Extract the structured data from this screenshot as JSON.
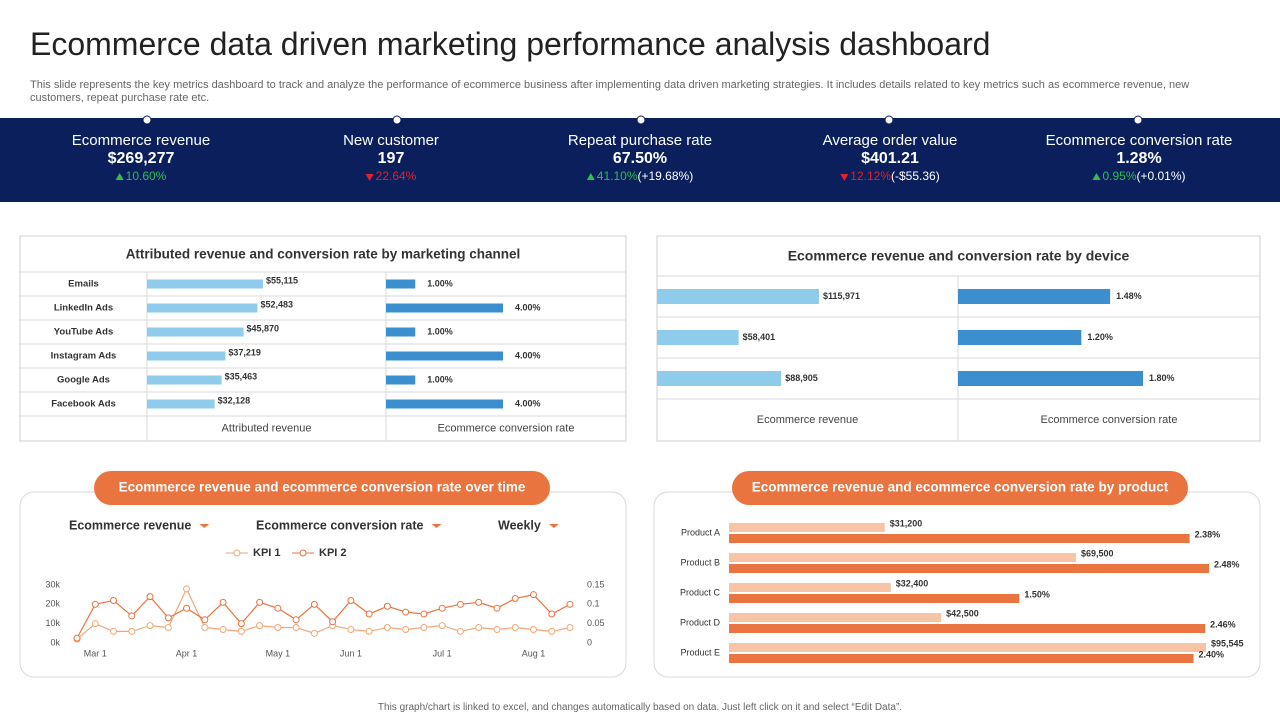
{
  "title": "Ecommerce data driven marketing performance analysis dashboard",
  "description": "This slide represents the key metrics dashboard to track and analyze the performance of ecommerce business after implementing data driven marketing strategies. It includes details related to key metrics such as ecommerce revenue, new customers, repeat purchase rate etc.",
  "kpis": [
    {
      "name": "Ecommerce revenue",
      "value": "$269,277",
      "change": "10.60%",
      "direction": "up"
    },
    {
      "name": "New customer",
      "value": "197",
      "change": "22.64%",
      "direction": "down"
    },
    {
      "name": "Repeat purchase rate",
      "value": "67.50%",
      "change": "41.10%",
      "extra": "(+19.68%)",
      "direction": "up"
    },
    {
      "name": "Average order value",
      "value": "$401.21",
      "change": "12.12%",
      "extra": "(-$55.36)",
      "direction": "down"
    },
    {
      "name": "Ecommerce conversion rate",
      "value": "1.28%",
      "change": "0.95%",
      "extra": "(+0.01%)",
      "direction": "up"
    }
  ],
  "chart_data": [
    {
      "type": "bar",
      "title": "Attributed revenue and conversion rate by marketing channel",
      "categories": [
        "Emails",
        "LinkedIn Ads",
        "YouTube Ads",
        "Instagram Ads",
        "Google Ads",
        "Facebook Ads"
      ],
      "series": [
        {
          "name": "Attributed revenue",
          "color": "#8fcbea",
          "values": [
            55115,
            52483,
            45870,
            37219,
            35463,
            32128
          ],
          "value_labels": [
            "$55,115",
            "$52,483",
            "$45,870",
            "$37,219",
            "$35,463",
            "$32,128"
          ]
        },
        {
          "name": "Ecommerce conversion rate",
          "color": "#3b8fcf",
          "values": [
            1.0,
            4.0,
            1.0,
            4.0,
            1.0,
            4.0
          ],
          "value_labels": [
            "1.00%",
            "4.00%",
            "1.00%",
            "4.00%",
            "1.00%",
            "4.00%"
          ]
        }
      ]
    },
    {
      "type": "bar",
      "title": "Ecommerce revenue and conversion rate by device",
      "categories": [
        null,
        null,
        null
      ],
      "series": [
        {
          "name": "Ecommerce revenue",
          "color": "#8fcbea",
          "values": [
            115971,
            58401,
            88905
          ],
          "value_labels": [
            "$115,971",
            "$58,401",
            "$88,905"
          ]
        },
        {
          "name": "Ecommerce conversion rate",
          "color": "#3b8fcf",
          "values": [
            1.48,
            1.2,
            1.8
          ],
          "value_labels": [
            "1.48%",
            "1.20%",
            "1.80%"
          ]
        }
      ]
    },
    {
      "type": "line",
      "title": "Ecommerce revenue and ecommerce conversion rate over time",
      "controls": [
        "Ecommerce revenue",
        "Ecommerce conversion rate",
        "Weekly"
      ],
      "categories": [
        null,
        "Mar 1",
        null,
        null,
        null,
        null,
        "Apr 1",
        null,
        null,
        null,
        null,
        "May 1",
        null,
        null,
        null,
        "Jun 1",
        null,
        null,
        null,
        null,
        "Jul 1",
        null,
        null,
        null,
        null,
        "Aug 1",
        null,
        null
      ],
      "series": [
        {
          "name": "KPI 1",
          "color": "#f2a77a",
          "axis": "y2",
          "values": [
            0.01,
            0.05,
            0.03,
            0.03,
            0.045,
            0.04,
            0.14,
            0.04,
            0.035,
            0.03,
            0.045,
            0.04,
            0.04,
            0.025,
            0.045,
            0.035,
            0.03,
            0.04,
            0.035,
            0.04,
            0.045,
            0.03,
            0.04,
            0.035,
            0.04,
            0.035,
            0.03,
            0.04
          ]
        },
        {
          "name": "KPI 2",
          "color": "#e9743f",
          "values": [
            2500,
            20000,
            22000,
            14000,
            24000,
            13000,
            18000,
            12000,
            21000,
            10000,
            21000,
            18000,
            12000,
            20000,
            11000,
            22000,
            15000,
            19000,
            16000,
            15000,
            18000,
            20000,
            21000,
            18000,
            23000,
            25000,
            15000,
            20000
          ]
        }
      ],
      "ylim": [
        0,
        30000
      ],
      "yticks": [
        {
          "value": 0,
          "label": "0k"
        },
        {
          "value": 10000,
          "label": "10k"
        },
        {
          "value": 20000,
          "label": "20k"
        },
        {
          "value": 30000,
          "label": "30k"
        }
      ],
      "y2lim": [
        0,
        0.15
      ],
      "y2ticks": [
        0,
        0.05,
        0.1,
        0.15
      ]
    },
    {
      "type": "bar",
      "grouped": true,
      "title": "Ecommerce revenue and ecommerce conversion rate by product",
      "categories": [
        "Product A",
        "Product B",
        "Product C",
        "Product D",
        "Product E"
      ],
      "series": [
        {
          "name": "Ecommerce revenue",
          "color": "#f7c4a6",
          "values": [
            31200,
            69500,
            32400,
            42500,
            95545
          ],
          "value_labels": [
            "$31,200",
            "$69,500",
            "$32,400",
            "$42,500",
            "$95,545"
          ]
        },
        {
          "name": "Ecommerce conversion rate",
          "color": "#ea7541",
          "values": [
            2.38,
            2.48,
            1.5,
            2.46,
            2.4
          ],
          "value_labels": [
            "2.38%",
            "2.48%",
            "1.50%",
            "2.46%",
            "2.40%"
          ]
        }
      ]
    }
  ],
  "footer": "This graph/chart is linked to excel, and changes automatically based on data. Just left click on it and select “Edit Data”."
}
